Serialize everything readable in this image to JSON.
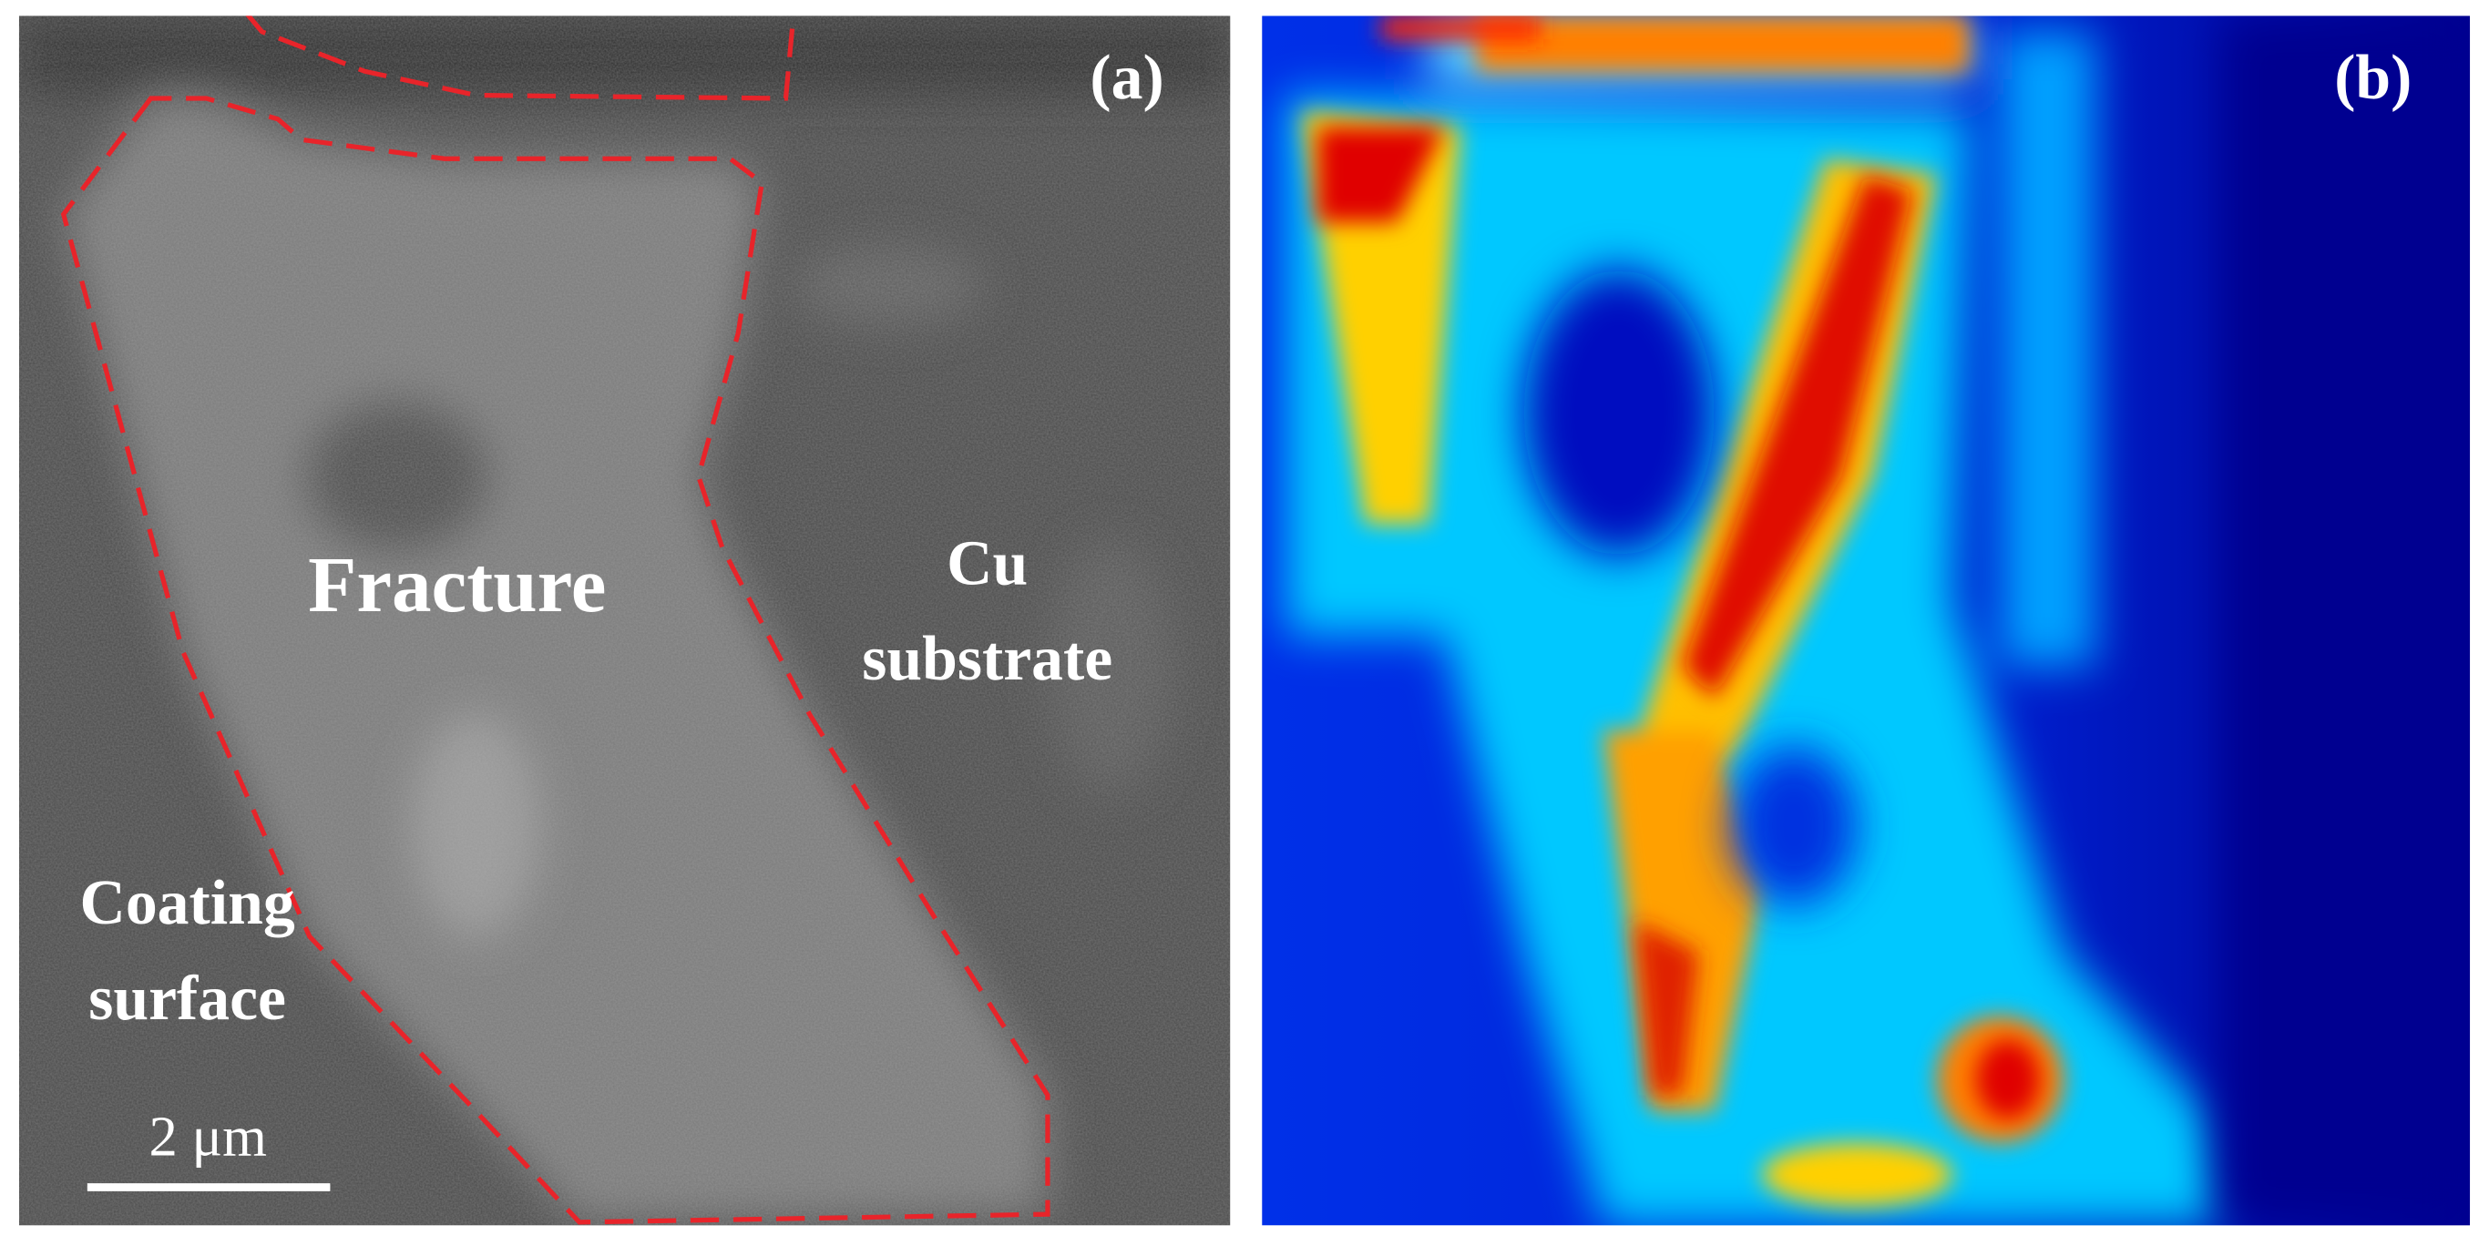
{
  "panels": [
    {
      "label": "(a)",
      "annotations": [
        "Fracture",
        "Cu",
        "substrate",
        "Coating",
        "surface"
      ],
      "scale_bar": "2 μm"
    },
    {
      "label": "(b)"
    }
  ]
}
